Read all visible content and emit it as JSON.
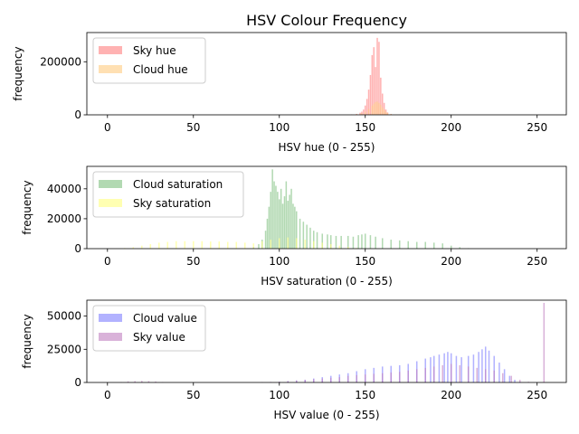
{
  "title": "HSV Colour Frequency",
  "chart_data": [
    {
      "type": "bar",
      "xlabel": "HSV hue (0 - 255)",
      "ylabel": "frequency",
      "xlim": [
        -12,
        267
      ],
      "ylim": [
        0,
        310000
      ],
      "xticks": [
        0,
        50,
        100,
        150,
        200,
        250
      ],
      "yticks": [
        0,
        200000
      ],
      "ytick_labels": [
        "0",
        "200000"
      ],
      "grid": false,
      "legend": "upper-left",
      "series": [
        {
          "name": "Sky hue",
          "color": "#ff7f7f",
          "points": [
            [
              142,
              1500
            ],
            [
              145,
              3500
            ],
            [
              147,
              8000
            ],
            [
              148,
              12000
            ],
            [
              149,
              20000
            ],
            [
              150,
              35000
            ],
            [
              151,
              60000
            ],
            [
              152,
              95000
            ],
            [
              153,
              150000
            ],
            [
              154,
              225000
            ],
            [
              155,
              255000
            ],
            [
              156,
              180000
            ],
            [
              157,
              290000
            ],
            [
              158,
              275000
            ],
            [
              159,
              140000
            ],
            [
              160,
              80000
            ],
            [
              161,
              45000
            ],
            [
              162,
              20000
            ],
            [
              163,
              9000
            ],
            [
              165,
              3000
            ],
            [
              170,
              800
            ]
          ]
        },
        {
          "name": "Cloud hue",
          "color": "#ffcc80",
          "points": [
            [
              140,
              600
            ],
            [
              145,
              2000
            ],
            [
              148,
              6000
            ],
            [
              150,
              12000
            ],
            [
              152,
              22000
            ],
            [
              154,
              35000
            ],
            [
              155,
              42000
            ],
            [
              156,
              48000
            ],
            [
              157,
              50000
            ],
            [
              158,
              45000
            ],
            [
              159,
              38000
            ],
            [
              160,
              28000
            ],
            [
              161,
              20000
            ],
            [
              162,
              12000
            ],
            [
              163,
              7000
            ],
            [
              165,
              3000
            ],
            [
              168,
              1000
            ],
            [
              172,
              400
            ]
          ]
        }
      ]
    },
    {
      "type": "bar",
      "xlabel": "HSV saturation (0 - 255)",
      "ylabel": "frequency",
      "xlim": [
        -12,
        267
      ],
      "ylim": [
        0,
        55000
      ],
      "xticks": [
        0,
        50,
        100,
        150,
        200,
        250
      ],
      "yticks": [
        0,
        20000,
        40000
      ],
      "ytick_labels": [
        "0",
        "20000",
        "40000"
      ],
      "grid": false,
      "legend": "upper-left",
      "series": [
        {
          "name": "Cloud saturation",
          "color": "#7fbf7f",
          "points": [
            [
              85,
              1000
            ],
            [
              88,
              3000
            ],
            [
              90,
              6000
            ],
            [
              92,
              12000
            ],
            [
              93,
              20000
            ],
            [
              94,
              28000
            ],
            [
              95,
              38000
            ],
            [
              96,
              53000
            ],
            [
              97,
              45000
            ],
            [
              98,
              42000
            ],
            [
              99,
              38000
            ],
            [
              100,
              33000
            ],
            [
              101,
              40000
            ],
            [
              102,
              30000
            ],
            [
              103,
              35000
            ],
            [
              104,
              45000
            ],
            [
              105,
              32000
            ],
            [
              106,
              36000
            ],
            [
              107,
              40000
            ],
            [
              108,
              30000
            ],
            [
              109,
              28000
            ],
            [
              110,
              25000
            ],
            [
              112,
              20000
            ],
            [
              114,
              18000
            ],
            [
              116,
              16000
            ],
            [
              118,
              14000
            ],
            [
              120,
              12000
            ],
            [
              122,
              11000
            ],
            [
              125,
              10000
            ],
            [
              128,
              9500
            ],
            [
              130,
              9000
            ],
            [
              133,
              8500
            ],
            [
              136,
              8500
            ],
            [
              140,
              8500
            ],
            [
              143,
              8000
            ],
            [
              146,
              9000
            ],
            [
              148,
              9500
            ],
            [
              150,
              10000
            ],
            [
              153,
              9000
            ],
            [
              156,
              8000
            ],
            [
              160,
              7000
            ],
            [
              165,
              6000
            ],
            [
              170,
              5500
            ],
            [
              175,
              5000
            ],
            [
              180,
              4500
            ],
            [
              185,
              4500
            ],
            [
              190,
              4000
            ],
            [
              195,
              3500
            ],
            [
              200,
              2000
            ],
            [
              205,
              1000
            ],
            [
              210,
              300
            ]
          ]
        },
        {
          "name": "Sky saturation",
          "color": "#ffff7f",
          "points": [
            [
              5,
              100
            ],
            [
              10,
              400
            ],
            [
              15,
              1000
            ],
            [
              20,
              2000
            ],
            [
              25,
              3000
            ],
            [
              30,
              4000
            ],
            [
              35,
              4500
            ],
            [
              40,
              5000
            ],
            [
              45,
              5000
            ],
            [
              50,
              5000
            ],
            [
              55,
              5000
            ],
            [
              60,
              4800
            ],
            [
              65,
              4800
            ],
            [
              70,
              4500
            ],
            [
              75,
              4500
            ],
            [
              80,
              4000
            ],
            [
              85,
              3500
            ],
            [
              90,
              5000
            ],
            [
              95,
              6000
            ],
            [
              100,
              7000
            ],
            [
              105,
              7500
            ],
            [
              110,
              7000
            ],
            [
              115,
              6000
            ],
            [
              120,
              5000
            ],
            [
              125,
              4000
            ],
            [
              130,
              3000
            ],
            [
              135,
              2000
            ],
            [
              140,
              1200
            ],
            [
              145,
              500
            ]
          ]
        }
      ]
    },
    {
      "type": "bar",
      "xlabel": "HSV value (0 - 255)",
      "ylabel": "frequency",
      "xlim": [
        -12,
        267
      ],
      "ylim": [
        0,
        62000
      ],
      "xticks": [
        0,
        50,
        100,
        150,
        200,
        250
      ],
      "yticks": [
        0,
        25000,
        50000
      ],
      "ytick_labels": [
        "0",
        "25000",
        "50000"
      ],
      "grid": false,
      "legend": "upper-left",
      "series": [
        {
          "name": "Cloud value",
          "color": "#7f7fff",
          "points": [
            [
              95,
              200
            ],
            [
              100,
              500
            ],
            [
              105,
              1000
            ],
            [
              110,
              1500
            ],
            [
              115,
              2000
            ],
            [
              120,
              3000
            ],
            [
              125,
              4000
            ],
            [
              130,
              5000
            ],
            [
              135,
              6000
            ],
            [
              140,
              7000
            ],
            [
              145,
              8500
            ],
            [
              150,
              10000
            ],
            [
              155,
              11000
            ],
            [
              160,
              12000
            ],
            [
              165,
              12500
            ],
            [
              170,
              13000
            ],
            [
              175,
              14000
            ],
            [
              180,
              16000
            ],
            [
              185,
              18000
            ],
            [
              188,
              19000
            ],
            [
              190,
              20000
            ],
            [
              193,
              21000
            ],
            [
              196,
              22000
            ],
            [
              198,
              23000
            ],
            [
              200,
              22000
            ],
            [
              203,
              20000
            ],
            [
              206,
              19000
            ],
            [
              210,
              20000
            ],
            [
              213,
              21000
            ],
            [
              216,
              23000
            ],
            [
              218,
              25000
            ],
            [
              220,
              27000
            ],
            [
              222,
              24000
            ],
            [
              225,
              20000
            ],
            [
              228,
              15000
            ],
            [
              231,
              10000
            ],
            [
              234,
              5000
            ],
            [
              237,
              2000
            ],
            [
              240,
              500
            ]
          ]
        },
        {
          "name": "Sky value",
          "color": "#bf7fbf",
          "points": [
            [
              8,
              300
            ],
            [
              12,
              800
            ],
            [
              16,
              1000
            ],
            [
              20,
              1200
            ],
            [
              24,
              1000
            ],
            [
              28,
              700
            ],
            [
              32,
              300
            ],
            [
              90,
              300
            ],
            [
              95,
              400
            ],
            [
              100,
              600
            ],
            [
              105,
              1000
            ],
            [
              110,
              1500
            ],
            [
              115,
              2000
            ],
            [
              120,
              2500
            ],
            [
              125,
              3000
            ],
            [
              130,
              3500
            ],
            [
              135,
              4000
            ],
            [
              140,
              5000
            ],
            [
              145,
              5500
            ],
            [
              150,
              6000
            ],
            [
              155,
              6500
            ],
            [
              160,
              7000
            ],
            [
              165,
              7500
            ],
            [
              170,
              8000
            ],
            [
              175,
              9000
            ],
            [
              180,
              10000
            ],
            [
              185,
              11000
            ],
            [
              190,
              12000
            ],
            [
              195,
              13000
            ],
            [
              200,
              14000
            ],
            [
              205,
              13000
            ],
            [
              210,
              12000
            ],
            [
              215,
              11000
            ],
            [
              220,
              10000
            ],
            [
              225,
              9000
            ],
            [
              230,
              7000
            ],
            [
              235,
              5000
            ],
            [
              240,
              2000
            ],
            [
              245,
              500
            ],
            [
              254,
              60000
            ]
          ]
        }
      ]
    }
  ]
}
